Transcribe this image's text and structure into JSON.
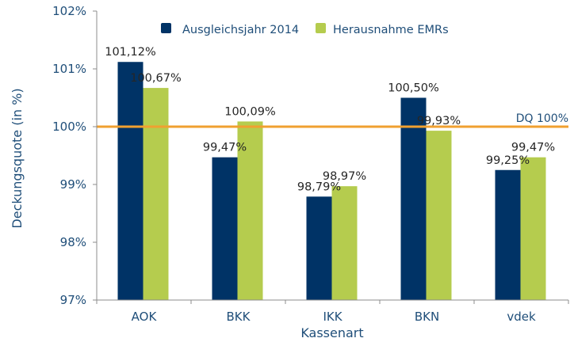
{
  "chart_data": {
    "type": "bar",
    "title": "",
    "xlabel": "Kassenart",
    "ylabel": "Deckungsquote (in %)",
    "ylim": [
      97,
      102
    ],
    "yticks": [
      97,
      98,
      99,
      100,
      101,
      102
    ],
    "ytick_labels": [
      "97%",
      "98%",
      "99%",
      "100%",
      "101%",
      "102%"
    ],
    "categories": [
      "AOK",
      "BKK",
      "IKK",
      "BKN",
      "vdek"
    ],
    "series": [
      {
        "name": "Ausgleichsjahr 2014",
        "color": "#003366",
        "values": [
          101.12,
          99.47,
          98.79,
          100.5,
          99.25
        ],
        "labels": [
          "101,12%",
          "99,47%",
          "98,79%",
          "100,50%",
          "99,25%"
        ]
      },
      {
        "name": "Herausnahme EMRs",
        "color": "#b5cc4e",
        "values": [
          100.67,
          100.09,
          98.97,
          99.93,
          99.47
        ],
        "labels": [
          "100,67%",
          "100,09%",
          "98,97%",
          "99,93%",
          "99,47%"
        ]
      }
    ],
    "reference_line": {
      "value": 100,
      "label": "DQ 100%",
      "color": "#f0a030"
    },
    "legend": {
      "placement": "top-center"
    },
    "grid": false
  }
}
